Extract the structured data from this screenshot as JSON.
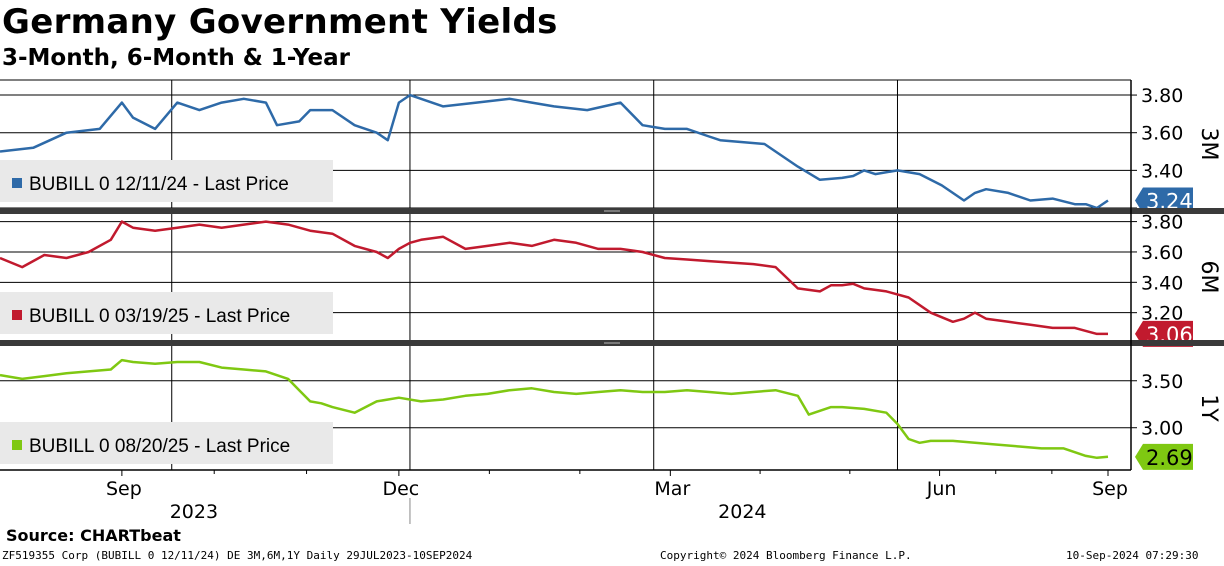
{
  "title": "Germany Government Yields",
  "subtitle": "3-Month, 6-Month & 1-Year",
  "source": "Source:  CHARTbeat",
  "footer": {
    "left": "ZF519355 Corp (BUBILL 0 12/11/24) DE 3M,6M,1Y  Daily 29JUL2023-10SEP2024",
    "center": "Copyright© 2024 Bloomberg Finance L.P.",
    "right": "10-Sep-2024 07:29:30"
  },
  "chart_data": [
    {
      "type": "line",
      "panel": "3M",
      "legend": "BUBILL 0 12/11/24 - Last Price",
      "color": "#2e6aa8",
      "last_value": "3.24",
      "ylim": [
        3.2,
        3.88
      ],
      "yticks": [
        3.8,
        3.6,
        3.4,
        3.2
      ],
      "ytick_labels": [
        "3.80",
        "3.60",
        "3.40",
        ""
      ],
      "grid": true,
      "x_fraction": [
        0,
        0.03,
        0.06,
        0.09,
        0.11,
        0.12,
        0.14,
        0.16,
        0.18,
        0.2,
        0.22,
        0.24,
        0.25,
        0.27,
        0.28,
        0.3,
        0.32,
        0.34,
        0.35,
        0.36,
        0.37,
        0.38,
        0.4,
        0.43,
        0.46,
        0.48,
        0.5,
        0.53,
        0.56,
        0.58,
        0.6,
        0.62,
        0.64,
        0.65,
        0.67,
        0.69,
        0.72,
        0.74,
        0.76,
        0.77,
        0.78,
        0.79,
        0.81,
        0.83,
        0.85,
        0.87,
        0.88,
        0.89,
        0.91,
        0.93,
        0.95,
        0.97,
        0.98,
        0.99,
        1.0
      ],
      "values": [
        3.5,
        3.52,
        3.6,
        3.62,
        3.76,
        3.68,
        3.62,
        3.76,
        3.72,
        3.76,
        3.78,
        3.76,
        3.64,
        3.66,
        3.72,
        3.72,
        3.64,
        3.6,
        3.56,
        3.76,
        3.8,
        3.78,
        3.74,
        3.76,
        3.78,
        3.76,
        3.74,
        3.72,
        3.76,
        3.64,
        3.62,
        3.62,
        3.58,
        3.56,
        3.55,
        3.54,
        3.42,
        3.35,
        3.36,
        3.37,
        3.4,
        3.38,
        3.4,
        3.38,
        3.32,
        3.24,
        3.28,
        3.3,
        3.28,
        3.24,
        3.25,
        3.22,
        3.22,
        3.2,
        3.24
      ]
    },
    {
      "type": "line",
      "panel": "6M",
      "legend": "BUBILL 0 03/19/25 - Last Price",
      "color": "#c11a2e",
      "last_value": "3.06",
      "ylim": [
        3.02,
        3.85
      ],
      "yticks": [
        3.8,
        3.6,
        3.4,
        3.2
      ],
      "ytick_labels": [
        "3.80",
        "3.60",
        "3.40",
        "3.20"
      ],
      "grid": true,
      "x_fraction": [
        0,
        0.02,
        0.04,
        0.06,
        0.08,
        0.1,
        0.11,
        0.12,
        0.14,
        0.16,
        0.18,
        0.2,
        0.22,
        0.24,
        0.26,
        0.28,
        0.3,
        0.32,
        0.34,
        0.35,
        0.36,
        0.37,
        0.38,
        0.4,
        0.42,
        0.44,
        0.46,
        0.48,
        0.5,
        0.52,
        0.54,
        0.56,
        0.58,
        0.6,
        0.62,
        0.64,
        0.66,
        0.68,
        0.7,
        0.72,
        0.74,
        0.75,
        0.76,
        0.77,
        0.78,
        0.8,
        0.82,
        0.84,
        0.86,
        0.87,
        0.88,
        0.89,
        0.91,
        0.93,
        0.95,
        0.97,
        0.98,
        0.99,
        1.0
      ],
      "values": [
        3.56,
        3.5,
        3.58,
        3.56,
        3.6,
        3.68,
        3.8,
        3.76,
        3.74,
        3.76,
        3.78,
        3.76,
        3.78,
        3.8,
        3.78,
        3.74,
        3.72,
        3.64,
        3.6,
        3.56,
        3.62,
        3.66,
        3.68,
        3.7,
        3.62,
        3.64,
        3.66,
        3.64,
        3.68,
        3.66,
        3.62,
        3.62,
        3.6,
        3.56,
        3.55,
        3.54,
        3.53,
        3.52,
        3.5,
        3.36,
        3.34,
        3.38,
        3.38,
        3.39,
        3.36,
        3.34,
        3.3,
        3.2,
        3.14,
        3.16,
        3.2,
        3.16,
        3.14,
        3.12,
        3.1,
        3.1,
        3.08,
        3.06,
        3.06
      ]
    },
    {
      "type": "line",
      "panel": "1Y",
      "legend": "BUBILL 0 08/20/25 - Last Price",
      "color": "#7fc812",
      "last_value": "2.69",
      "ylim": [
        2.55,
        3.87
      ],
      "yticks": [
        3.5,
        3.0
      ],
      "ytick_labels": [
        "3.50",
        "3.00"
      ],
      "grid": true,
      "x_fraction": [
        0,
        0.02,
        0.04,
        0.06,
        0.08,
        0.1,
        0.11,
        0.12,
        0.14,
        0.16,
        0.18,
        0.2,
        0.22,
        0.24,
        0.26,
        0.27,
        0.28,
        0.29,
        0.3,
        0.32,
        0.34,
        0.36,
        0.38,
        0.4,
        0.42,
        0.44,
        0.46,
        0.48,
        0.5,
        0.52,
        0.54,
        0.56,
        0.58,
        0.6,
        0.62,
        0.64,
        0.66,
        0.68,
        0.7,
        0.72,
        0.73,
        0.74,
        0.75,
        0.76,
        0.78,
        0.8,
        0.81,
        0.82,
        0.83,
        0.84,
        0.86,
        0.88,
        0.9,
        0.92,
        0.94,
        0.96,
        0.97,
        0.98,
        0.99,
        1.0
      ],
      "values": [
        3.56,
        3.52,
        3.55,
        3.58,
        3.6,
        3.62,
        3.72,
        3.7,
        3.68,
        3.7,
        3.7,
        3.64,
        3.62,
        3.6,
        3.52,
        3.4,
        3.28,
        3.26,
        3.22,
        3.16,
        3.28,
        3.32,
        3.28,
        3.3,
        3.34,
        3.36,
        3.4,
        3.42,
        3.38,
        3.36,
        3.38,
        3.4,
        3.38,
        3.38,
        3.4,
        3.38,
        3.36,
        3.38,
        3.4,
        3.34,
        3.14,
        3.18,
        3.22,
        3.22,
        3.2,
        3.16,
        3.04,
        2.88,
        2.84,
        2.86,
        2.86,
        2.84,
        2.82,
        2.8,
        2.78,
        2.78,
        2.74,
        2.7,
        2.68,
        2.69
      ]
    }
  ],
  "x_axis": {
    "month_ticks": [
      {
        "label": "Sep",
        "fraction": 0.11
      },
      {
        "label": "Dec",
        "fraction": 0.36
      },
      {
        "label": "Mar",
        "fraction": 0.605
      },
      {
        "label": "Jun",
        "fraction": 0.848
      },
      {
        "label": "Sep",
        "fraction": 1.0
      }
    ],
    "years": [
      {
        "label": "2023",
        "fraction": 0.175
      },
      {
        "label": "2024",
        "fraction": 0.67
      }
    ],
    "year_divider_fraction": 0.37,
    "vertical_grid_fractions": [
      0.155,
      0.37,
      0.59,
      0.81
    ]
  }
}
